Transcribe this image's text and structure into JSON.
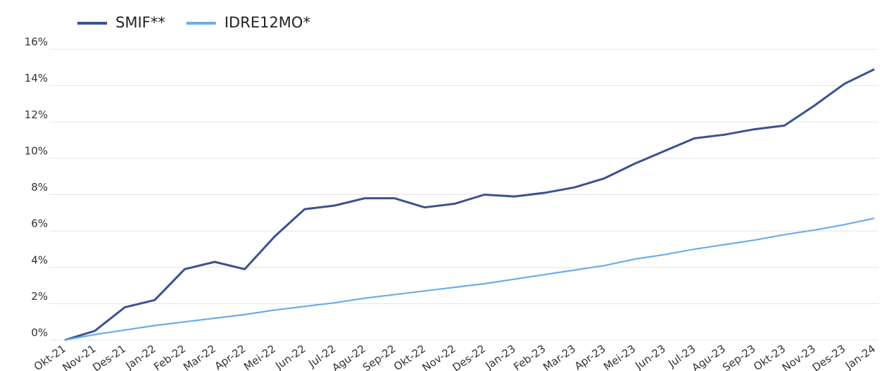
{
  "chart_data": {
    "type": "line",
    "categories": [
      "Okt-21",
      "Nov-21",
      "Des-21",
      "Jan-22",
      "Feb-22",
      "Mar-22",
      "Apr-22",
      "Mei-22",
      "Jun-22",
      "Jul-22",
      "Agu-22",
      "Sep-22",
      "Okt-22",
      "Nov-22",
      "Des-22",
      "Jan-23",
      "Feb-23",
      "Mar-23",
      "Apr-23",
      "Mei-23",
      "Jun-23",
      "Jul-23",
      "Agu-23",
      "Sep-23",
      "Okt-23",
      "Nov-23",
      "Des-23",
      "Jan-24"
    ],
    "series": [
      {
        "name": "SMIF**",
        "color": "#3a5290",
        "values": [
          0,
          0.5,
          1.8,
          2.2,
          3.9,
          4.3,
          3.9,
          5.7,
          7.2,
          7.4,
          7.8,
          7.8,
          7.3,
          7.5,
          8.0,
          7.9,
          8.1,
          8.4,
          8.9,
          9.7,
          10.4,
          11.1,
          11.3,
          11.6,
          11.8,
          12.9,
          14.1,
          14.9
        ]
      },
      {
        "name": "IDRE12MO*",
        "color": "#6aaeea",
        "values": [
          0,
          0.3,
          0.55,
          0.8,
          1.0,
          1.2,
          1.4,
          1.65,
          1.85,
          2.05,
          2.3,
          2.5,
          2.7,
          2.9,
          3.1,
          3.35,
          3.6,
          3.85,
          4.1,
          4.45,
          4.7,
          5.0,
          5.25,
          5.5,
          5.8,
          6.05,
          6.35,
          6.7
        ]
      }
    ],
    "ylim": [
      0,
      16
    ],
    "yticks": [
      {
        "value": 0,
        "label": "0%"
      },
      {
        "value": 2,
        "label": "2%"
      },
      {
        "value": 4,
        "label": "4%"
      },
      {
        "value": 6,
        "label": "6%"
      },
      {
        "value": 8,
        "label": "8%"
      },
      {
        "value": 10,
        "label": "10%"
      },
      {
        "value": 12,
        "label": "12%"
      },
      {
        "value": 14,
        "label": "14%"
      },
      {
        "value": 16,
        "label": "16%"
      }
    ],
    "grid": true,
    "legend": "top-left"
  }
}
